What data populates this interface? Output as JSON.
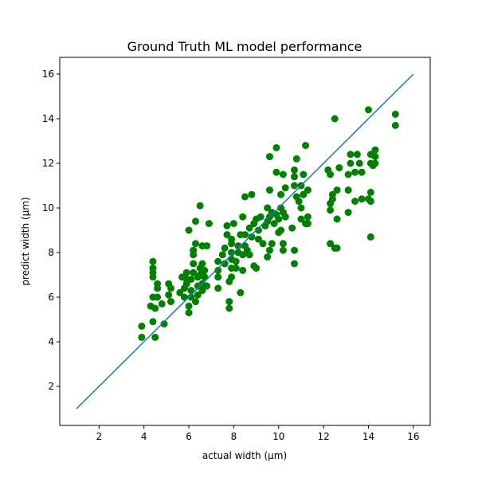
{
  "chart_data": {
    "type": "scatter",
    "title": "Ground Truth ML model performance",
    "xlabel": "actual width (μm)",
    "ylabel": "predict width (μm)",
    "xlim": [
      0.25,
      16.75
    ],
    "ylim": [
      0.25,
      16.75
    ],
    "xticks": [
      2,
      4,
      6,
      8,
      10,
      12,
      14,
      16
    ],
    "yticks": [
      2,
      4,
      6,
      8,
      10,
      12,
      14,
      16
    ],
    "grid": false,
    "legend": "none",
    "series": [
      {
        "kind": "scatter",
        "color": "#008000",
        "points": [
          [
            3.9,
            4.2
          ],
          [
            3.9,
            4.7
          ],
          [
            4.4,
            4.9
          ],
          [
            4.5,
            4.2
          ],
          [
            4.9,
            4.8
          ],
          [
            4.3,
            5.6
          ],
          [
            4.5,
            5.5
          ],
          [
            4.8,
            5.7
          ],
          [
            5.2,
            5.8
          ],
          [
            4.4,
            6.0
          ],
          [
            4.6,
            6.0
          ],
          [
            4.6,
            6.4
          ],
          [
            4.6,
            6.6
          ],
          [
            5.1,
            6.1
          ],
          [
            5.2,
            6.4
          ],
          [
            5.1,
            6.6
          ],
          [
            4.4,
            6.9
          ],
          [
            4.4,
            7.1
          ],
          [
            4.4,
            7.3
          ],
          [
            4.4,
            7.6
          ],
          [
            5.6,
            6.2
          ],
          [
            5.8,
            6.0
          ],
          [
            5.9,
            6.6
          ],
          [
            5.9,
            6.8
          ],
          [
            5.9,
            7.1
          ],
          [
            6.0,
            5.3
          ],
          [
            6.0,
            5.6
          ],
          [
            6.1,
            6.0
          ],
          [
            6.1,
            6.3
          ],
          [
            6.1,
            6.8
          ],
          [
            6.2,
            7.1
          ],
          [
            6.2,
            7.5
          ],
          [
            6.2,
            8.1
          ],
          [
            6.3,
            8.4
          ],
          [
            6.3,
            5.8
          ],
          [
            6.4,
            6.1
          ],
          [
            6.4,
            6.5
          ],
          [
            6.4,
            6.9
          ],
          [
            6.5,
            7.0
          ],
          [
            6.5,
            7.3
          ],
          [
            6.6,
            6.3
          ],
          [
            6.6,
            6.6
          ],
          [
            6.6,
            7.5
          ],
          [
            6.6,
            8.3
          ],
          [
            6.7,
            6.9
          ],
          [
            6.7,
            7.2
          ],
          [
            6.8,
            6.5
          ],
          [
            6.8,
            8.3
          ],
          [
            6.9,
            9.3
          ],
          [
            6.3,
            9.4
          ],
          [
            6.0,
            9.0
          ],
          [
            6.5,
            10.1
          ],
          [
            6.2,
            7.9
          ],
          [
            5.7,
            6.9
          ],
          [
            5.8,
            6.4
          ],
          [
            7.3,
            6.4
          ],
          [
            7.3,
            6.9
          ],
          [
            7.3,
            7.2
          ],
          [
            7.3,
            7.6
          ],
          [
            7.5,
            7.9
          ],
          [
            7.6,
            7.5
          ],
          [
            7.6,
            8.2
          ],
          [
            7.7,
            8.8
          ],
          [
            7.7,
            9.2
          ],
          [
            7.8,
            5.5
          ],
          [
            7.8,
            5.8
          ],
          [
            7.8,
            6.7
          ],
          [
            7.9,
            6.9
          ],
          [
            7.9,
            7.3
          ],
          [
            7.9,
            7.7
          ],
          [
            7.9,
            8.0
          ],
          [
            7.9,
            8.4
          ],
          [
            7.9,
            8.6
          ],
          [
            8.0,
            9.3
          ],
          [
            8.1,
            7.3
          ],
          [
            8.1,
            7.6
          ],
          [
            8.2,
            8.0
          ],
          [
            8.2,
            8.3
          ],
          [
            8.3,
            6.2
          ],
          [
            8.3,
            8.8
          ],
          [
            8.4,
            7.2
          ],
          [
            8.4,
            7.9
          ],
          [
            8.4,
            9.6
          ],
          [
            8.5,
            8.3
          ],
          [
            8.5,
            8.8
          ],
          [
            8.5,
            10.5
          ],
          [
            8.6,
            8.1
          ],
          [
            8.7,
            7.9
          ],
          [
            8.7,
            9.1
          ],
          [
            8.8,
            10.6
          ],
          [
            8.8,
            8.7
          ],
          [
            8.9,
            7.4
          ],
          [
            8.9,
            9.3
          ],
          [
            9.0,
            7.3
          ],
          [
            9.0,
            9.5
          ],
          [
            9.1,
            8.6
          ],
          [
            9.1,
            9.0
          ],
          [
            9.2,
            9.6
          ],
          [
            9.3,
            8.4
          ],
          [
            9.4,
            9.2
          ],
          [
            9.5,
            7.8
          ],
          [
            9.5,
            9.4
          ],
          [
            9.5,
            10.0
          ],
          [
            9.6,
            8.1
          ],
          [
            9.6,
            9.6
          ],
          [
            9.6,
            10.8
          ],
          [
            9.6,
            12.3
          ],
          [
            9.7,
            8.4
          ],
          [
            9.7,
            9.8
          ],
          [
            9.8,
            9.3
          ],
          [
            9.9,
            9.7
          ],
          [
            9.9,
            11.6
          ],
          [
            9.9,
            12.7
          ],
          [
            10.0,
            8.9
          ],
          [
            10.0,
            9.5
          ],
          [
            10.1,
            9.0
          ],
          [
            10.1,
            10.0
          ],
          [
            10.1,
            10.6
          ],
          [
            10.2,
            8.4
          ],
          [
            10.2,
            9.8
          ],
          [
            10.2,
            11.5
          ],
          [
            10.2,
            8.1
          ],
          [
            10.3,
            9.6
          ],
          [
            10.3,
            10.9
          ],
          [
            10.6,
            9.1
          ],
          [
            10.7,
            8.1
          ],
          [
            10.7,
            7.5
          ],
          [
            10.7,
            11.0
          ],
          [
            10.7,
            11.4
          ],
          [
            10.7,
            11.7
          ],
          [
            10.8,
            10.5
          ],
          [
            10.8,
            12.2
          ],
          [
            10.9,
            10.3
          ],
          [
            11.0,
            9.5
          ],
          [
            11.0,
            10.0
          ],
          [
            11.0,
            11.0
          ],
          [
            11.1,
            10.6
          ],
          [
            11.1,
            11.5
          ],
          [
            11.2,
            9.3
          ],
          [
            11.2,
            12.8
          ],
          [
            11.3,
            9.6
          ],
          [
            11.3,
            10.8
          ],
          [
            11.3,
            9.3
          ],
          [
            12.3,
            8.4
          ],
          [
            12.5,
            14.0
          ],
          [
            12.3,
            9.9
          ],
          [
            12.3,
            10.2
          ],
          [
            12.3,
            11.5
          ],
          [
            12.4,
            10.4
          ],
          [
            12.4,
            10.6
          ],
          [
            12.5,
            8.2
          ],
          [
            12.6,
            8.2
          ],
          [
            12.6,
            9.5
          ],
          [
            12.6,
            10.8
          ],
          [
            12.2,
            11.7
          ],
          [
            12.7,
            11.8
          ],
          [
            13.1,
            9.8
          ],
          [
            13.1,
            10.8
          ],
          [
            13.1,
            11.5
          ],
          [
            13.2,
            12.0
          ],
          [
            13.2,
            12.4
          ],
          [
            13.4,
            10.3
          ],
          [
            13.4,
            11.6
          ],
          [
            13.5,
            12.4
          ],
          [
            13.6,
            12.0
          ],
          [
            13.7,
            10.4
          ],
          [
            13.7,
            11.6
          ],
          [
            14.0,
            14.4
          ],
          [
            14.0,
            10.4
          ],
          [
            14.1,
            8.7
          ],
          [
            14.1,
            10.3
          ],
          [
            14.1,
            10.7
          ],
          [
            14.1,
            12.0
          ],
          [
            14.1,
            12.4
          ],
          [
            14.2,
            11.9
          ],
          [
            14.3,
            12.0
          ],
          [
            14.3,
            12.3
          ],
          [
            14.3,
            12.6
          ],
          [
            15.2,
            13.7
          ],
          [
            15.2,
            14.2
          ]
        ]
      },
      {
        "kind": "line",
        "color": "#1f77b4",
        "points": [
          [
            1,
            1
          ],
          [
            16,
            16
          ]
        ]
      }
    ]
  }
}
